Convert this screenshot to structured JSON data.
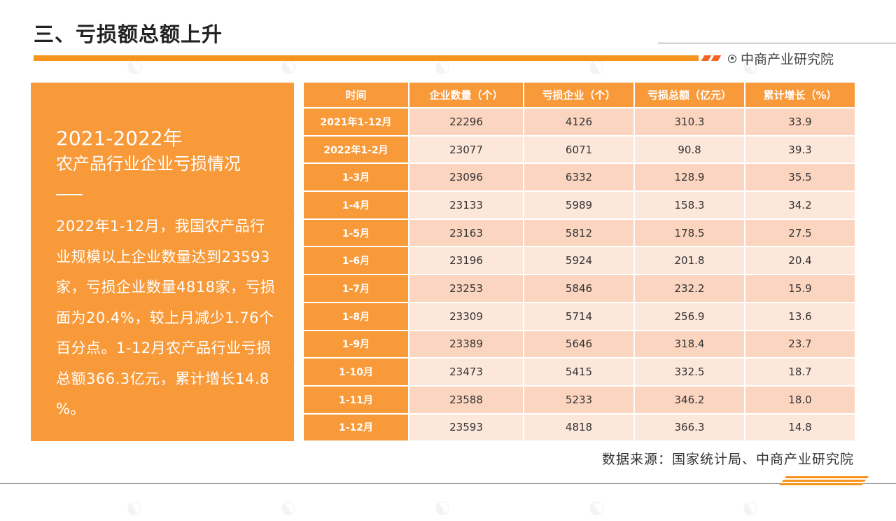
{
  "header": {
    "title": "三、亏损额总额上升",
    "brand": "中商产业研究院"
  },
  "summary": {
    "heading_year": "2021-2022年",
    "heading_topic": "农产品行业企业亏损情况",
    "body": "2022年1-12月，我国农产品行业规模以上企业数量达到23593家，亏损企业数量4818家，亏损面为20.4%，较上月减少1.76个百分点。1-12月农产品行业亏损总额366.3亿元，累计增长14.8　　　　%。"
  },
  "table": {
    "headers": [
      "时间",
      "企业数量（个）",
      "亏损企业（个）",
      "亏损总额（亿元）",
      "累计增长（%）"
    ],
    "rows": [
      [
        "2021年1-12月",
        "22296",
        "4126",
        "310.3",
        "33.9"
      ],
      [
        "2022年1-2月",
        "23077",
        "6071",
        "90.8",
        "39.3"
      ],
      [
        "1-3月",
        "23096",
        "6332",
        "128.9",
        "35.5"
      ],
      [
        "1-4月",
        "23133",
        "5989",
        "158.3",
        "34.2"
      ],
      [
        "1-5月",
        "23163",
        "5812",
        "178.5",
        "27.5"
      ],
      [
        "1-6月",
        "23196",
        "5924",
        "201.8",
        "20.4"
      ],
      [
        "1-7月",
        "23253",
        "5846",
        "232.2",
        "15.9"
      ],
      [
        "1-8月",
        "23309",
        "5714",
        "256.9",
        "13.6"
      ],
      [
        "1-9月",
        "23389",
        "5646",
        "318.4",
        "23.7"
      ],
      [
        "1-10月",
        "23473",
        "5415",
        "332.5",
        "18.7"
      ],
      [
        "1-11月",
        "23588",
        "5233",
        "346.2",
        "18.0"
      ],
      [
        "1-12月",
        "23593",
        "4818",
        "366.3",
        "14.8"
      ]
    ]
  },
  "footer": {
    "source": "数据来源：国家统计局、中商产业研究院"
  },
  "colors": {
    "accent": "#f89a3a",
    "accent_dark": "#f26522",
    "row_odd": "#fbd5bf",
    "row_even": "#fde6da"
  }
}
